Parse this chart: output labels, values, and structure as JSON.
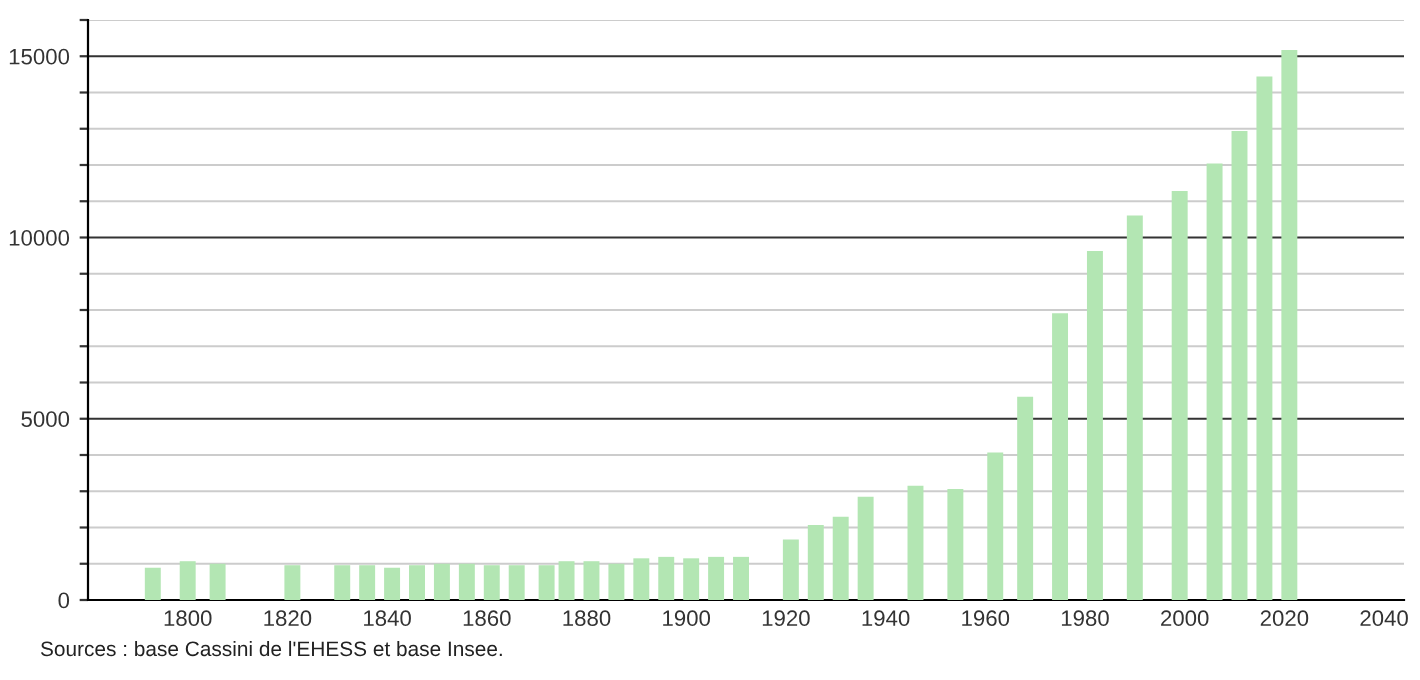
{
  "chart_data": {
    "type": "bar",
    "color": "#b3e6b3",
    "x": [
      1793,
      1800,
      1806,
      1821,
      1831,
      1836,
      1841,
      1846,
      1851,
      1856,
      1861,
      1866,
      1872,
      1876,
      1881,
      1886,
      1891,
      1896,
      1901,
      1906,
      1911,
      1921,
      1926,
      1931,
      1936,
      1946,
      1954,
      1962,
      1968,
      1975,
      1982,
      1990,
      1999,
      2006,
      2011,
      2016,
      2021
    ],
    "values": [
      890,
      1070,
      1000,
      960,
      960,
      960,
      890,
      960,
      1000,
      1000,
      960,
      960,
      960,
      1070,
      1070,
      1000,
      1150,
      1190,
      1150,
      1190,
      1190,
      1670,
      2070,
      2300,
      2850,
      3150,
      3060,
      4070,
      5610,
      7910,
      9630,
      10610,
      11280,
      12040,
      12940,
      14440,
      15170
    ],
    "xlim": [
      1780,
      2044
    ],
    "xticks": [
      1800,
      1820,
      1840,
      1860,
      1880,
      1900,
      1920,
      1940,
      1960,
      1980,
      2000,
      2020,
      2040
    ],
    "ylim": [
      0,
      16000
    ],
    "yticks": [
      0,
      {
        "value": 1000,
        "label": null
      },
      {
        "value": 2000,
        "label": null
      },
      {
        "value": 3000,
        "label": null
      },
      {
        "value": 4000,
        "label": null
      },
      5000,
      {
        "value": 6000,
        "label": null
      },
      {
        "value": 7000,
        "label": null
      },
      {
        "value": 8000,
        "label": null
      },
      {
        "value": 9000,
        "label": null
      },
      10000,
      {
        "value": 11000,
        "label": null
      },
      {
        "value": 12000,
        "label": null
      },
      {
        "value": 13000,
        "label": null
      },
      {
        "value": 14000,
        "label": null
      },
      15000,
      {
        "value": 16000,
        "label": null
      }
    ],
    "grid": "y",
    "annotations": [
      "Sources : base Cassini de l'EHESS et base Insee."
    ]
  }
}
